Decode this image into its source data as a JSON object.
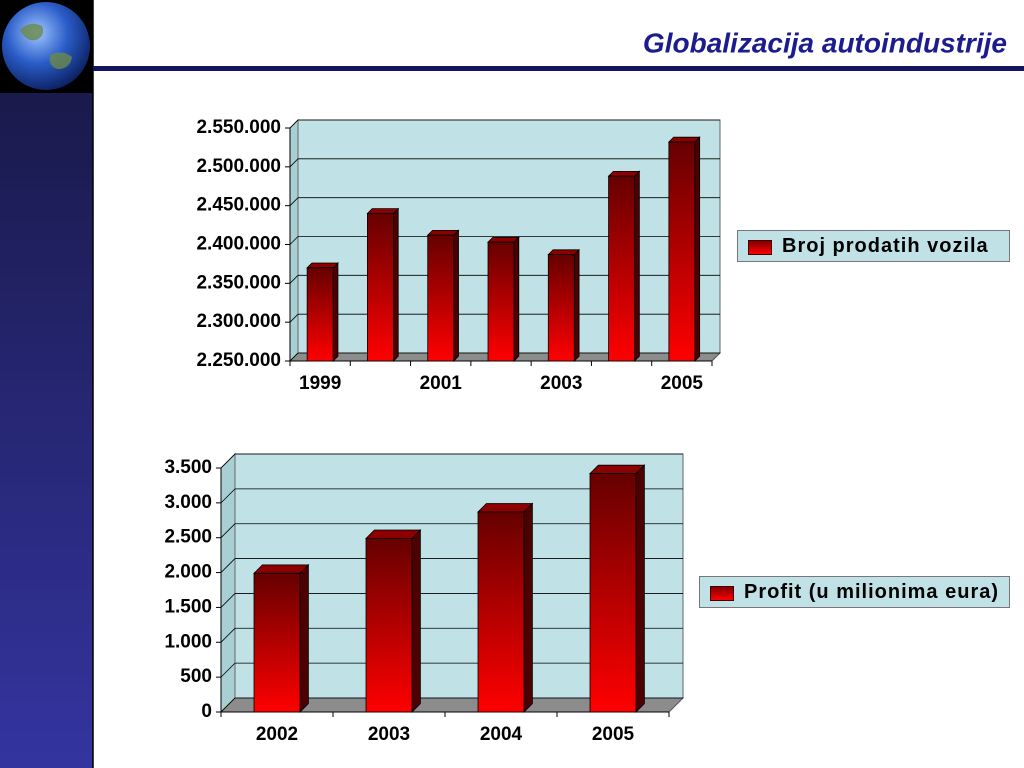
{
  "header": {
    "title": "Globalizacija autoindustrije"
  },
  "chart_data": [
    {
      "type": "bar",
      "categories": [
        "1999",
        null,
        "2001",
        null,
        "2003",
        null,
        "2005"
      ],
      "series": [
        {
          "name": "Broj prodatih vozila",
          "color": "#ff0000",
          "values": [
            2370000,
            2440000,
            2412000,
            2403000,
            2387000,
            2488000,
            2532000
          ]
        }
      ],
      "ylim": [
        2250000,
        2550000
      ],
      "yticks": [
        {
          "value": 2250000,
          "label": "2.250.000"
        },
        {
          "value": 2300000,
          "label": "2.300.000"
        },
        {
          "value": 2350000,
          "label": "2.350.000"
        },
        {
          "value": 2400000,
          "label": "2.400.000"
        },
        {
          "value": 2450000,
          "label": "2.450.000"
        },
        {
          "value": 2500000,
          "label": "2.500.000"
        },
        {
          "value": 2550000,
          "label": "2.550.000"
        }
      ],
      "grid": true,
      "legend": "right"
    },
    {
      "type": "bar",
      "categories": [
        "2002",
        "2003",
        "2004",
        "2005"
      ],
      "series": [
        {
          "name": "Profit (u milionima eura)",
          "color": "#ff0000",
          "values": [
            1990,
            2490,
            2870,
            3420
          ]
        }
      ],
      "ylim": [
        0,
        3500
      ],
      "yticks": [
        0,
        500,
        {
          "value": 1000,
          "label": "1.000"
        },
        {
          "value": 1500,
          "label": "1.500"
        },
        {
          "value": 2000,
          "label": "2.000"
        },
        {
          "value": 2500,
          "label": "2.500"
        },
        {
          "value": 3000,
          "label": "3.000"
        },
        {
          "value": 3500,
          "label": "3.500"
        }
      ],
      "grid": true,
      "legend": "right"
    }
  ]
}
